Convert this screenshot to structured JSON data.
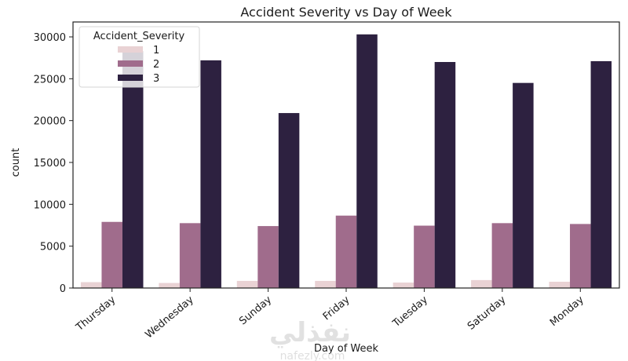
{
  "chart_data": {
    "type": "bar",
    "title": "Accident Severity vs Day of Week",
    "xlabel": "Day of Week",
    "ylabel": "count",
    "ylim": [
      0,
      31500
    ],
    "yticks": [
      0,
      5000,
      10000,
      15000,
      20000,
      25000,
      30000
    ],
    "categories": [
      "Thursday",
      "Wednesday",
      "Sunday",
      "Friday",
      "Tuesday",
      "Saturday",
      "Monday"
    ],
    "legend": {
      "title": "Accident_Severity",
      "position": "top-left"
    },
    "grid": false,
    "series": [
      {
        "name": "1",
        "color": "#e9d2d4",
        "values": [
          700,
          600,
          850,
          850,
          650,
          950,
          750
        ]
      },
      {
        "name": "2",
        "color": "#a06c8c",
        "values": [
          7900,
          7750,
          7400,
          8650,
          7450,
          7750,
          7650
        ]
      },
      {
        "name": "3",
        "color": "#2d2140",
        "values": [
          28300,
          27200,
          20900,
          30300,
          27000,
          24500,
          27100
        ]
      }
    ]
  },
  "watermark": {
    "arabic": "نفذلي",
    "latin": "nafezly.com"
  }
}
